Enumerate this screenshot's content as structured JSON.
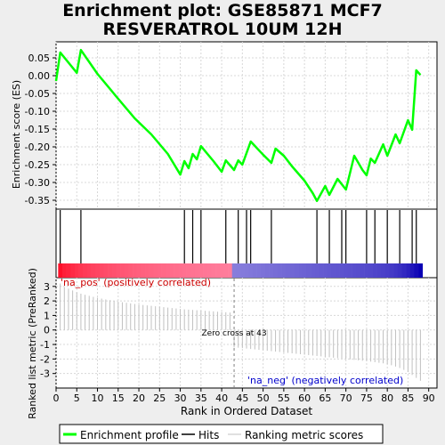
{
  "title_line1": "Enrichment plot: GSE85871 MCF7",
  "title_line2": "RESVERATROL 10UM 12H",
  "colors": {
    "es_line": "#00ff00",
    "pos_label": "#cc0000",
    "neg_label": "#0000cc",
    "metric_line": "#c0c0c0"
  },
  "chart_data": [
    {
      "type": "line",
      "name": "enrichment-score-panel",
      "ylabel": "Enrichment score (ES)",
      "xlim": [
        0,
        92
      ],
      "ylim": [
        -0.375,
        0.095
      ],
      "yticks": [
        0.05,
        0.0,
        -0.05,
        -0.1,
        -0.15,
        -0.2,
        -0.25,
        -0.3,
        -0.35
      ],
      "ytick_labels": [
        "0.05",
        "0.00",
        "-0.05",
        "-0.10",
        "-0.15",
        "-0.20",
        "-0.25",
        "-0.30",
        "-0.35"
      ],
      "grid": true,
      "series": [
        {
          "name": "Enrichment profile",
          "x": [
            0,
            1,
            5,
            6,
            10,
            15,
            19,
            23,
            27,
            30,
            31,
            32,
            33,
            34,
            35,
            38,
            40,
            41,
            43,
            44,
            45,
            47,
            50,
            52,
            53,
            55,
            57,
            60,
            62,
            63,
            65,
            66,
            68,
            70,
            72,
            74,
            75,
            76,
            77,
            79,
            80,
            82,
            83,
            85,
            86,
            87,
            88
          ],
          "y": [
            -0.015,
            0.065,
            0.008,
            0.072,
            0.005,
            -0.065,
            -0.12,
            -0.165,
            -0.22,
            -0.278,
            -0.24,
            -0.26,
            -0.22,
            -0.235,
            -0.198,
            -0.24,
            -0.27,
            -0.238,
            -0.265,
            -0.238,
            -0.25,
            -0.185,
            -0.222,
            -0.245,
            -0.205,
            -0.225,
            -0.255,
            -0.295,
            -0.33,
            -0.352,
            -0.31,
            -0.335,
            -0.29,
            -0.32,
            -0.225,
            -0.265,
            -0.28,
            -0.233,
            -0.245,
            -0.193,
            -0.225,
            -0.165,
            -0.19,
            -0.125,
            -0.152,
            0.015,
            0.002
          ]
        }
      ]
    },
    {
      "type": "scatter",
      "name": "hits-panel",
      "series": [
        {
          "name": "Hits",
          "x": [
            1,
            6,
            31,
            33,
            35,
            41,
            44,
            46,
            47,
            52,
            63,
            66,
            69,
            70,
            75,
            77,
            80,
            83,
            86,
            87
          ]
        }
      ]
    },
    {
      "type": "area",
      "name": "ranked-metric-panel",
      "ylabel": "Ranked list metric (PreRanked)",
      "xlabel": "Rank in Ordered Dataset",
      "xlim": [
        0,
        92
      ],
      "ylim": [
        -4,
        3.6
      ],
      "xticks": [
        0,
        5,
        10,
        15,
        20,
        25,
        30,
        35,
        40,
        45,
        50,
        55,
        60,
        65,
        70,
        75,
        80,
        85,
        90
      ],
      "xtick_labels": [
        "0",
        "5",
        "10",
        "15",
        "20",
        "25",
        "30",
        "35",
        "40",
        "45",
        "50",
        "55",
        "60",
        "65",
        "70",
        "75",
        "80",
        "85",
        "90"
      ],
      "yticks": [
        3,
        2,
        1,
        0,
        -1,
        -2,
        -3
      ],
      "ytick_labels": [
        "3",
        "2",
        "1",
        "0",
        "-1",
        "-2",
        "-3"
      ],
      "grid": true,
      "zero_cross_rank": 43,
      "series": [
        {
          "name": "Ranking metric scores",
          "x": [
            1,
            2,
            3,
            4,
            5,
            6,
            7,
            8,
            9,
            10,
            11,
            12,
            13,
            14,
            15,
            16,
            17,
            18,
            19,
            20,
            21,
            22,
            23,
            24,
            25,
            26,
            27,
            28,
            29,
            30,
            31,
            32,
            33,
            34,
            35,
            36,
            37,
            38,
            39,
            40,
            41,
            42,
            43,
            44,
            45,
            46,
            47,
            48,
            49,
            50,
            51,
            52,
            53,
            54,
            55,
            56,
            57,
            58,
            59,
            60,
            61,
            62,
            63,
            64,
            65,
            66,
            67,
            68,
            69,
            70,
            71,
            72,
            73,
            74,
            75,
            76,
            77,
            78,
            79,
            80,
            81,
            82,
            83,
            84,
            85,
            86,
            87,
            88
          ],
          "values": [
            3.2,
            2.95,
            2.85,
            2.72,
            2.6,
            2.5,
            2.42,
            2.35,
            2.28,
            2.22,
            2.16,
            2.1,
            2.05,
            2.0,
            1.95,
            1.91,
            1.87,
            1.83,
            1.79,
            1.75,
            1.72,
            1.69,
            1.66,
            1.63,
            1.6,
            1.57,
            1.54,
            1.51,
            1.48,
            1.45,
            1.42,
            1.4,
            1.38,
            1.36,
            1.34,
            1.32,
            1.3,
            1.28,
            1.26,
            1.24,
            1.22,
            1.2,
            -1.2,
            -1.22,
            -1.25,
            -1.28,
            -1.31,
            -1.34,
            -1.37,
            -1.4,
            -1.43,
            -1.46,
            -1.49,
            -1.52,
            -1.55,
            -1.58,
            -1.61,
            -1.64,
            -1.67,
            -1.7,
            -1.73,
            -1.76,
            -1.79,
            -1.82,
            -1.85,
            -1.88,
            -1.91,
            -1.94,
            -1.97,
            -2.0,
            -2.03,
            -2.06,
            -2.09,
            -2.12,
            -2.15,
            -2.18,
            -2.22,
            -2.26,
            -2.3,
            -2.36,
            -2.43,
            -2.52,
            -2.62,
            -2.75,
            -2.9,
            -3.1,
            -3.3,
            -3.5
          ]
        }
      ],
      "annotations": {
        "zero_cross": "Zero cross at 43",
        "pos": "'na_pos' (positively correlated)",
        "neg": "'na_neg' (negatively correlated)"
      }
    }
  ],
  "legend": {
    "placement": "bottom",
    "items": [
      {
        "label": "Enrichment profile",
        "color": "#00ff00",
        "style": "thick-line"
      },
      {
        "label": "Hits",
        "color": "#000000",
        "style": "line"
      },
      {
        "label": "Ranking metric scores",
        "color": "#c0c0c0",
        "style": "thin-line"
      }
    ]
  }
}
